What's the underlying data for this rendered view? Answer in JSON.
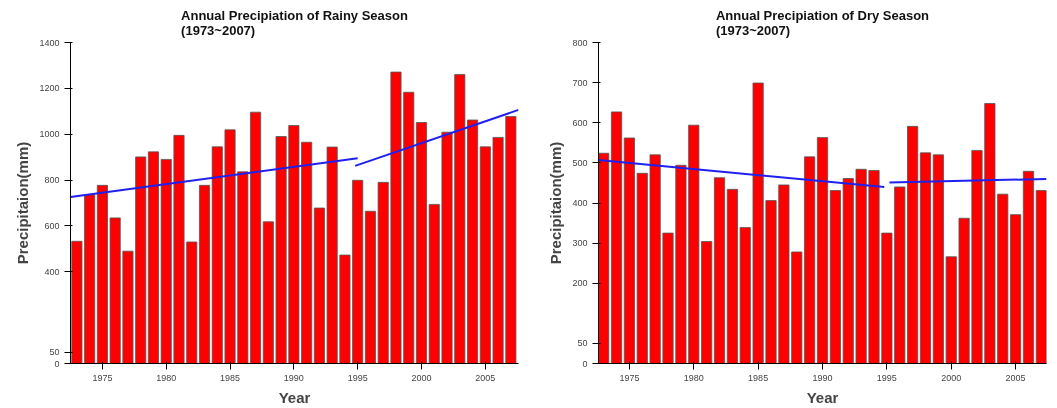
{
  "chart_data": [
    {
      "type": "bar",
      "title": "Annual Precipiation of Rainy Season\n(1973~2007)",
      "xlabel": "Year",
      "ylabel": "Precipitaion(mm)",
      "xlim": [
        1972.5,
        2007.6
      ],
      "ylim": [
        0,
        1400
      ],
      "xticks": [
        1975,
        1980,
        1985,
        1990,
        1995,
        2000,
        2005
      ],
      "yticks": [
        0,
        50,
        400,
        600,
        800,
        1000,
        1200,
        1400
      ],
      "grid": false,
      "series": [
        {
          "color": "#ff0000",
          "x": [
            1973,
            1974,
            1975,
            1976,
            1977,
            1978,
            1979,
            1980,
            1981,
            1982,
            1983,
            1984,
            1985,
            1986,
            1987,
            1988,
            1989,
            1990,
            1991,
            1992,
            1993,
            1994,
            1995,
            1996,
            1997,
            1998,
            1999,
            2000,
            2001,
            2002,
            2003,
            2004,
            2005,
            2006,
            2007
          ],
          "values": [
            533,
            736,
            777,
            635,
            490,
            901,
            923,
            890,
            995,
            530,
            777,
            945,
            1019,
            836,
            1096,
            618,
            990,
            1038,
            965,
            678,
            944,
            473,
            799,
            664,
            790,
            1271,
            1183,
            1051,
            694,
            1009,
            1260,
            1062,
            945,
            986,
            1077
          ]
        },
        {
          "type": "line",
          "color": "#2020ee",
          "x": [
            1972.5,
            1995
          ],
          "values": [
            726,
            895
          ]
        },
        {
          "type": "line",
          "color": "#2020ee",
          "x": [
            1994.8,
            2007.6
          ],
          "values": [
            862,
            1106
          ]
        }
      ]
    },
    {
      "type": "bar",
      "title": "Annual Precipiation of Dry Season\n(1973~2007)",
      "xlabel": "Year",
      "ylabel": "Precipitaion(mm)",
      "xlim": [
        1972.6,
        2007.4
      ],
      "ylim": [
        0,
        800
      ],
      "xticks": [
        1975,
        1980,
        1985,
        1990,
        1995,
        2000,
        2005
      ],
      "yticks": [
        0,
        50,
        200,
        300,
        400,
        500,
        600,
        700,
        800
      ],
      "grid": false,
      "series": [
        {
          "color": "#ff0000",
          "x": [
            1973,
            1974,
            1975,
            1976,
            1977,
            1978,
            1979,
            1980,
            1981,
            1982,
            1983,
            1984,
            1985,
            1986,
            1987,
            1988,
            1989,
            1990,
            1991,
            1992,
            1993,
            1994,
            1995,
            1996,
            1997,
            1998,
            1999,
            2000,
            2001,
            2002,
            2003,
            2004,
            2005,
            2006,
            2007
          ],
          "values": [
            524,
            627,
            562,
            474,
            520,
            325,
            494,
            594,
            304,
            463,
            434,
            339,
            699,
            406,
            445,
            278,
            515,
            563,
            431,
            461,
            484,
            481,
            325,
            440,
            591,
            525,
            520,
            266,
            362,
            531,
            648,
            422,
            371,
            479,
            431
          ]
        },
        {
          "type": "line",
          "color": "#2020ee",
          "x": [
            1972.6,
            1994.8
          ],
          "values": [
            507,
            440
          ]
        },
        {
          "type": "line",
          "color": "#2020ee",
          "x": [
            1995.2,
            2007.4
          ],
          "values": [
            451,
            460
          ]
        }
      ]
    }
  ]
}
